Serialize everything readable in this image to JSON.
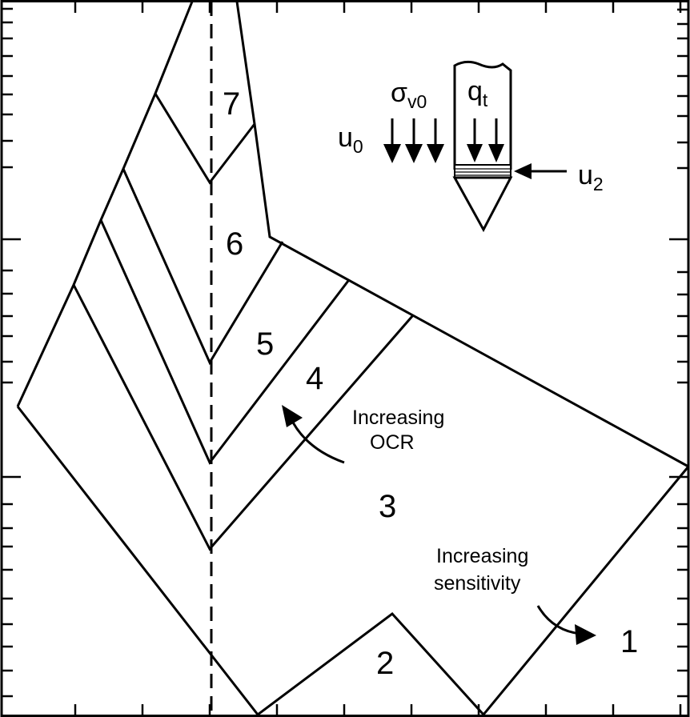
{
  "zones": [
    {
      "id": "1",
      "label": "1"
    },
    {
      "id": "2",
      "label": "2"
    },
    {
      "id": "3",
      "label": "3"
    },
    {
      "id": "4",
      "label": "4"
    },
    {
      "id": "5",
      "label": "5"
    },
    {
      "id": "6",
      "label": "6"
    },
    {
      "id": "7",
      "label": "7"
    }
  ],
  "annotations": {
    "ocr_line1": "Increasing",
    "ocr_line2": "OCR",
    "sensitivity_line1": "Increasing",
    "sensitivity_line2": "sensitivity"
  },
  "probe_inset": {
    "u0_base": "u",
    "u0_sub": "0",
    "sigma_base": "σ",
    "sigma_sub": "v0",
    "qt_base": "q",
    "qt_sub": "t",
    "u2_base": "u",
    "u2_sub": "2"
  },
  "colors": {
    "line": "#000000",
    "background": "#ffffff"
  }
}
